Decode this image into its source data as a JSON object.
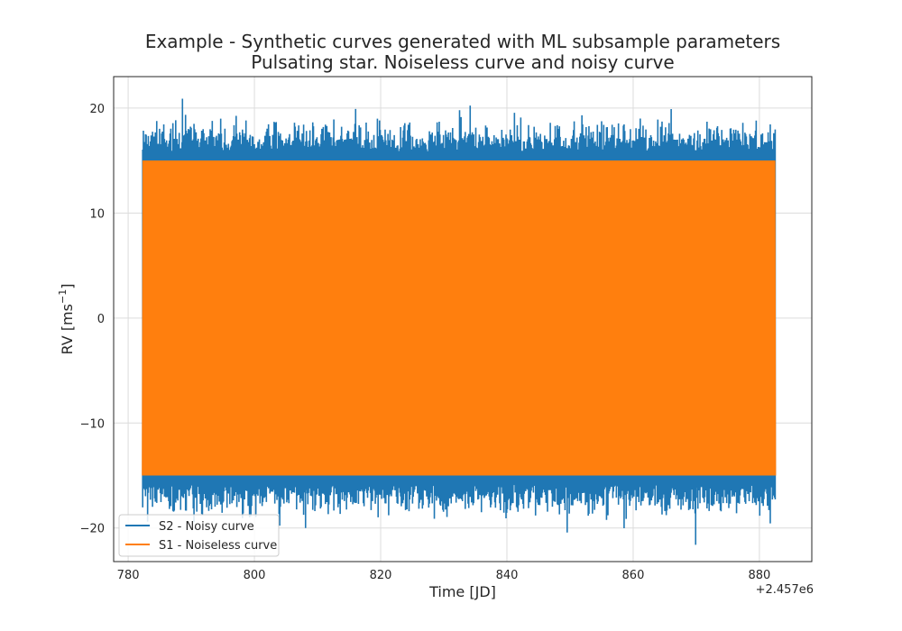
{
  "chart_data": {
    "type": "line",
    "title": "Example - Synthetic curves generated with ML subsample parameters",
    "subtitle": "Pulsating star. Noiseless curve and noisy curve",
    "xlabel": "Time [JD]",
    "ylabel": "RV [ms",
    "ylabel_sup": "−1",
    "ylabel_close": "]",
    "x_offset_label": "+2.457e6",
    "xlim": [
      777.7,
      888.3
    ],
    "ylim": [
      -23.2,
      23.0
    ],
    "x_ticks": [
      780,
      800,
      820,
      840,
      860,
      880
    ],
    "x_tick_labels": [
      "780",
      "800",
      "820",
      "840",
      "860",
      "880"
    ],
    "y_ticks": [
      20,
      10,
      0,
      -10,
      -20
    ],
    "y_tick_labels": [
      "20",
      "10",
      "0",
      "−10",
      "−20"
    ],
    "grid": true,
    "legend_position": "lower-left",
    "x_range": [
      782.3,
      882.5
    ],
    "series": [
      {
        "name": "S2 - Noisy curve",
        "color": "#1f77b4",
        "amplitude_core": 15.0,
        "max_value": 20.9,
        "min_value": -21.6,
        "noise_sigma": 1.2
      },
      {
        "name": "S1 - Noiseless curve",
        "color": "#ff7f0e",
        "amplitude": 15.0
      }
    ]
  }
}
